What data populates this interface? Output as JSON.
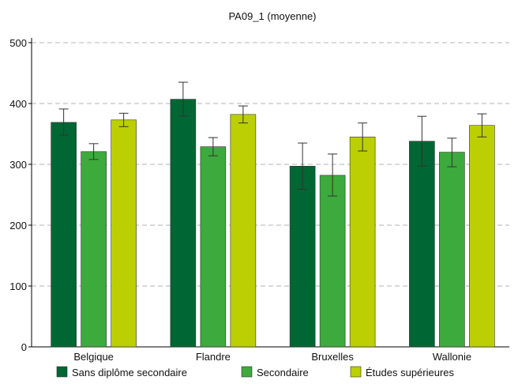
{
  "chart_data": {
    "type": "bar",
    "title": "PA09_1 (moyenne)",
    "categories": [
      "Belgique",
      "Flandre",
      "Bruxelles",
      "Wallonie"
    ],
    "ylim": [
      0,
      500
    ],
    "yticks": [
      0,
      100,
      200,
      300,
      400,
      500
    ],
    "grid": true,
    "legend_position": "bottom",
    "series": [
      {
        "name": "Sans diplôme secondaire",
        "color": "#006633",
        "values": [
          369,
          407,
          297,
          338
        ],
        "err_low": [
          348,
          379,
          259,
          297
        ],
        "err_high": [
          391,
          435,
          335,
          379
        ]
      },
      {
        "name": "Secondaire",
        "color": "#3caa3c",
        "values": [
          321,
          329,
          282,
          320
        ],
        "err_low": [
          308,
          314,
          248,
          296
        ],
        "err_high": [
          334,
          344,
          317,
          343
        ]
      },
      {
        "name": "Études supérieures",
        "color": "#bccf02",
        "values": [
          373,
          382,
          345,
          364
        ],
        "err_low": [
          362,
          368,
          322,
          345
        ],
        "err_high": [
          384,
          396,
          368,
          383
        ]
      }
    ]
  }
}
